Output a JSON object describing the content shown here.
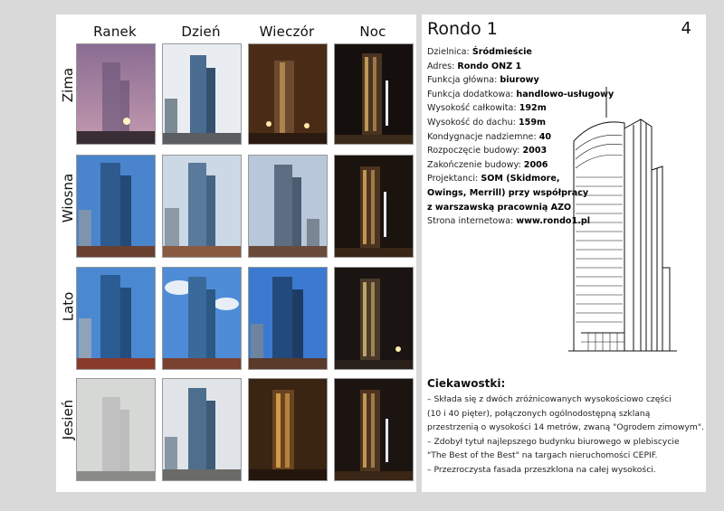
{
  "columns": [
    "Ranek",
    "Dzień",
    "Wieczór",
    "Noc"
  ],
  "rows": [
    "Zima",
    "Wiosna",
    "Lato",
    "Jesień"
  ],
  "building": {
    "title": "Rondo 1",
    "page_number": "4",
    "details": [
      {
        "label": "Dzielnica:",
        "value": "Śródmieście"
      },
      {
        "label": "Adres:",
        "value": "Rondo ONZ 1"
      },
      {
        "label": "Funkcja główna:",
        "value": "biurowy"
      },
      {
        "label": "Funkcja dodatkowa:",
        "value": "handlowo-usługowy"
      },
      {
        "label": "Wysokość całkowita:",
        "value": "192m"
      },
      {
        "label": "Wysokość do dachu:",
        "value": "159m"
      },
      {
        "label": "Kondygnacje nadziemne:",
        "value": "40"
      },
      {
        "label": "Rozpoczęcie budowy:",
        "value": "2003"
      },
      {
        "label": "Zakończenie budowy:",
        "value": "2006"
      },
      {
        "label": "Projektanci:",
        "value": "SOM (Skidmore,"
      },
      {
        "label": "",
        "value": "Owings, Merrill) przy współpracy"
      },
      {
        "label": "",
        "value": "z warszawską pracownią AZO"
      },
      {
        "label": "Strona internetowa:",
        "value": "www.rondo1.pl"
      }
    ]
  },
  "trivia": {
    "title": "Ciekawostki:",
    "lines": [
      " – Składa się z dwóch zróżnicowanych wysokościowo części",
      "(10 i 40 pięter), połączonych ogólnodostępną szklaną",
      "przestrzenią o wysokości 14 metrów, zwaną \"Ogrodem zimowym\".",
      " – Zdobył tytuł najlepszego budynku biurowego w plebiscycie",
      "\"The Best of the Best\" na targach nieruchomości CEPIF.",
      " – Przezroczysta fasada przeszklona na całej wysokości."
    ]
  },
  "colors": {
    "zima": [
      "#7a6a8a",
      "#e8ecf0",
      "#5a3a1e",
      "#1a1412"
    ],
    "wiosna": [
      "#3f78c2",
      "#c9d6e6",
      "#b6c6d8",
      "#1c1510"
    ],
    "lato": [
      "#3f7ccc",
      "#4b86d6",
      "#3a78cf",
      "#1a1512"
    ],
    "jesien": [
      "#d8dad8",
      "#dfe3e8",
      "#3a2412",
      "#1c1410"
    ]
  }
}
